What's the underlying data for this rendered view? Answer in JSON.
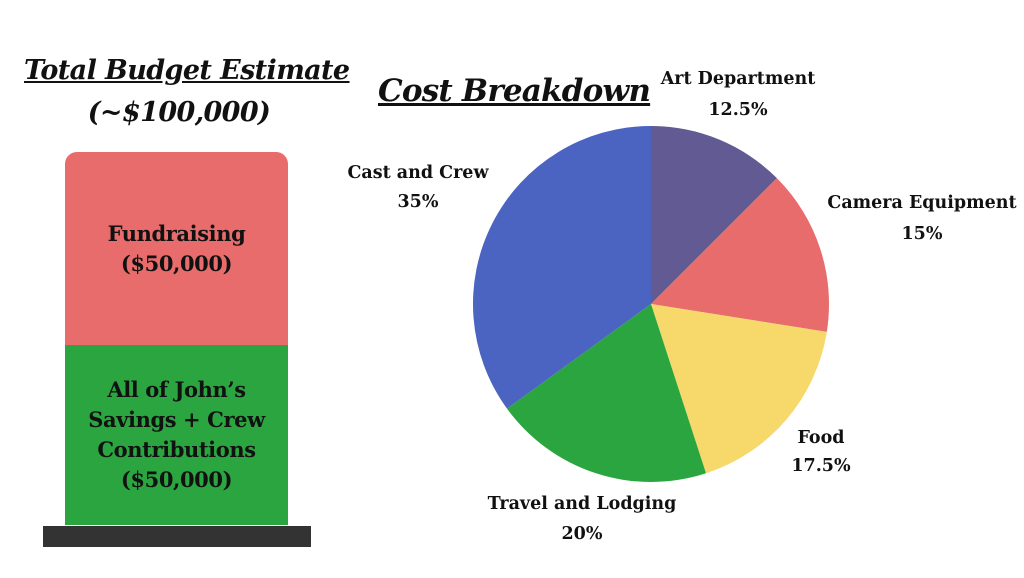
{
  "budget": {
    "title": "Total Budget Estimate",
    "subtitle": "(~$100,000)",
    "segments": [
      {
        "label": "Fundraising\n($50,000)",
        "value": 50000,
        "color": "#e86c6b"
      },
      {
        "label": "All of John’s\nSavings + Crew\nContributions\n($50,000)",
        "value": 50000,
        "color": "#2ba540"
      }
    ]
  },
  "chart_data": [
    {
      "type": "bar",
      "title": "Total Budget Estimate",
      "subtitle": "(~$100,000)",
      "stacked": true,
      "categories": [
        "Fundraising",
        "All of John’s Savings + Crew Contributions"
      ],
      "values": [
        50000,
        50000
      ]
    },
    {
      "type": "pie",
      "title": "Cost Breakdown",
      "slices": [
        {
          "label": "Art Department",
          "pct_label": "12.5%",
          "value": 12.5,
          "color": "#625a92"
        },
        {
          "label": "Camera Equipment",
          "pct_label": "15%",
          "value": 15,
          "color": "#e86c6b"
        },
        {
          "label": "Food",
          "pct_label": "17.5%",
          "value": 17.5,
          "color": "#f6d86b"
        },
        {
          "label": "Travel and Lodging",
          "pct_label": "20%",
          "value": 20,
          "color": "#2ba540"
        },
        {
          "label": "Cast and Crew",
          "pct_label": "35%",
          "value": 35,
          "color": "#4b64c2"
        }
      ]
    }
  ]
}
